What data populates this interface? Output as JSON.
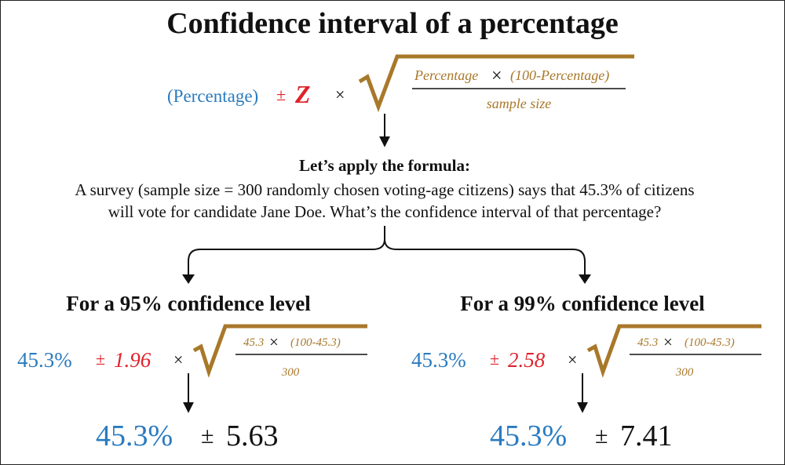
{
  "title": "Confidence interval of a percentage",
  "formula": {
    "percentage": "(Percentage)",
    "plus_minus": "±",
    "z": "Z",
    "times": "×",
    "numerator_left": "Percentage",
    "numerator_times": "×",
    "numerator_right": "(100-Percentage)",
    "denominator": "sample size"
  },
  "apply": {
    "heading": "Let’s apply the formula:",
    "text_lines": [
      "A survey (sample size = 300 randomly chosen voting-age citizens) says that 45.3% of citizens",
      "will vote for candidate Jane Doe. What’s the confidence interval of that percentage?"
    ]
  },
  "cases": [
    {
      "heading": "For a 95% confidence level",
      "percentage": "45.3%",
      "plus_minus": "±",
      "z": "1.96",
      "times": "×",
      "numerator_left": "45.3",
      "numerator_times": "×",
      "numerator_right": "(100-45.3)",
      "denominator": "300",
      "result_percentage": "45.3%",
      "result_plus_minus": "±",
      "result_margin": "5.63"
    },
    {
      "heading": "For a 99% confidence level",
      "percentage": "45.3%",
      "plus_minus": "±",
      "z": "2.58",
      "times": "×",
      "numerator_left": "45.3",
      "numerator_times": "×",
      "numerator_right": "(100-45.3)",
      "denominator": "300",
      "result_percentage": "45.3%",
      "result_plus_minus": "±",
      "result_margin": "7.41"
    }
  ]
}
